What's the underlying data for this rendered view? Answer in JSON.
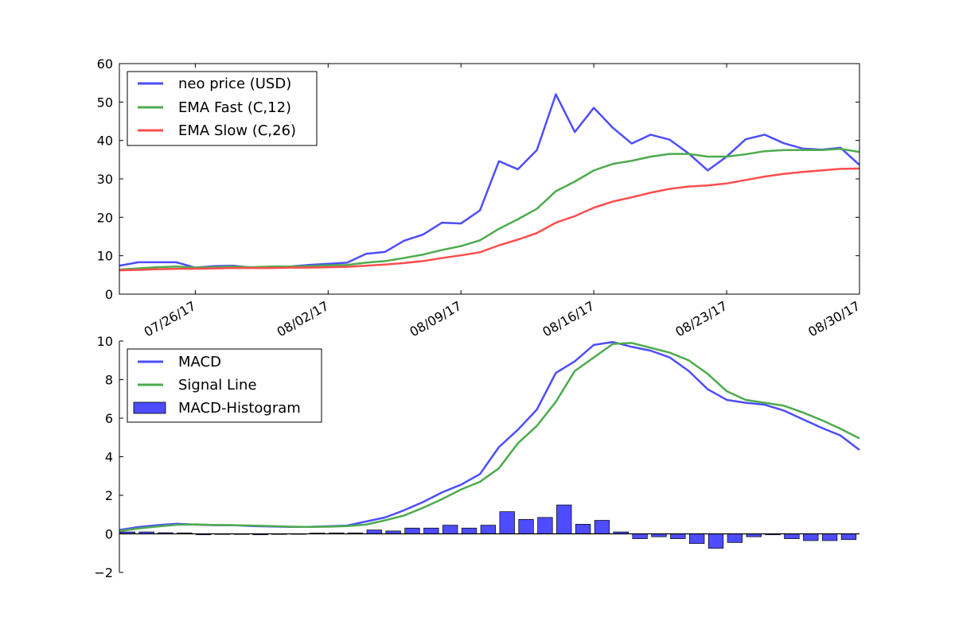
{
  "chart_data": [
    {
      "type": "line",
      "ylim": [
        0,
        60
      ],
      "yticks": [
        0,
        10,
        20,
        30,
        40,
        50,
        60
      ],
      "xlim": [
        "2017-07-22",
        "2017-08-30"
      ],
      "xticks": [
        "2017-07-26",
        "2017-08-02",
        "2017-08-09",
        "2017-08-16",
        "2017-08-23",
        "2017-08-30"
      ],
      "xtick_labels": [
        "07/26/17",
        "08/02/17",
        "08/09/17",
        "08/16/17",
        "08/23/17",
        "08/30/17"
      ],
      "legend_position": "upper-left",
      "colors": {
        "neo price (USD)": "#4d4dff",
        "EMA Fast (C,12)": "#4dab4d",
        "EMA Slow (C,26)": "#ff4d4d"
      },
      "x": [
        "2017-07-22",
        "2017-07-23",
        "2017-07-24",
        "2017-07-25",
        "2017-07-26",
        "2017-07-27",
        "2017-07-28",
        "2017-07-29",
        "2017-07-30",
        "2017-07-31",
        "2017-08-01",
        "2017-08-02",
        "2017-08-03",
        "2017-08-04",
        "2017-08-05",
        "2017-08-06",
        "2017-08-07",
        "2017-08-08",
        "2017-08-09",
        "2017-08-10",
        "2017-08-11",
        "2017-08-12",
        "2017-08-13",
        "2017-08-14",
        "2017-08-15",
        "2017-08-16",
        "2017-08-17",
        "2017-08-18",
        "2017-08-19",
        "2017-08-20",
        "2017-08-21",
        "2017-08-22",
        "2017-08-23",
        "2017-08-24",
        "2017-08-25",
        "2017-08-26",
        "2017-08-27",
        "2017-08-28",
        "2017-08-29",
        "2017-08-30"
      ],
      "series": [
        {
          "name": "neo price (USD)",
          "values": [
            7.4,
            8.3,
            8.3,
            8.3,
            6.9,
            7.3,
            7.4,
            6.9,
            7.1,
            7.2,
            7.6,
            7.9,
            8.2,
            10.5,
            11.0,
            13.9,
            15.5,
            18.6,
            18.4,
            21.8,
            34.6,
            32.5,
            37.5,
            52.0,
            42.2,
            48.5,
            43.3,
            39.2,
            41.5,
            40.2,
            36.6,
            32.2,
            35.8,
            40.3,
            41.5,
            39.3,
            37.9,
            37.6,
            38.1,
            33.6
          ]
        },
        {
          "name": "EMA Fast (C,12)",
          "values": [
            6.4,
            6.7,
            7.0,
            7.2,
            6.9,
            7.0,
            7.2,
            7.0,
            7.2,
            7.2,
            7.3,
            7.5,
            7.6,
            8.2,
            8.6,
            9.4,
            10.3,
            11.5,
            12.5,
            14.0,
            17.0,
            19.5,
            22.2,
            26.8,
            29.3,
            32.2,
            33.9,
            34.7,
            35.8,
            36.5,
            36.5,
            35.8,
            35.8,
            36.4,
            37.2,
            37.5,
            37.5,
            37.5,
            37.8,
            37.0
          ]
        },
        {
          "name": "EMA Slow (C,26)",
          "values": [
            6.2,
            6.3,
            6.5,
            6.6,
            6.6,
            6.7,
            6.8,
            6.8,
            6.8,
            6.9,
            6.9,
            7.0,
            7.1,
            7.4,
            7.7,
            8.1,
            8.6,
            9.4,
            10.1,
            10.9,
            12.7,
            14.2,
            15.9,
            18.6,
            20.3,
            22.5,
            24.1,
            25.2,
            26.4,
            27.4,
            28.0,
            28.3,
            28.8,
            29.7,
            30.6,
            31.3,
            31.8,
            32.2,
            32.6,
            32.7
          ]
        }
      ]
    },
    {
      "type": "line+bar",
      "ylim": [
        -2,
        10
      ],
      "yticks": [
        -2,
        0,
        2,
        4,
        6,
        8,
        10
      ],
      "ytick_labels": [
        "−2",
        "0",
        "2",
        "4",
        "6",
        "8",
        "10"
      ],
      "legend_position": "upper-left",
      "colors": {
        "MACD": "#4d4dff",
        "Signal Line": "#4dab4d",
        "MACD-Histogram": "#4d4dff"
      },
      "x": [
        "2017-07-22",
        "2017-07-23",
        "2017-07-24",
        "2017-07-25",
        "2017-07-26",
        "2017-07-27",
        "2017-07-28",
        "2017-07-29",
        "2017-07-30",
        "2017-07-31",
        "2017-08-01",
        "2017-08-02",
        "2017-08-03",
        "2017-08-04",
        "2017-08-05",
        "2017-08-06",
        "2017-08-07",
        "2017-08-08",
        "2017-08-09",
        "2017-08-10",
        "2017-08-11",
        "2017-08-12",
        "2017-08-13",
        "2017-08-14",
        "2017-08-15",
        "2017-08-16",
        "2017-08-17",
        "2017-08-18",
        "2017-08-19",
        "2017-08-20",
        "2017-08-21",
        "2017-08-22",
        "2017-08-23",
        "2017-08-24",
        "2017-08-25",
        "2017-08-26",
        "2017-08-27",
        "2017-08-28",
        "2017-08-29",
        "2017-08-30"
      ],
      "series": [
        {
          "name": "MACD",
          "kind": "line",
          "values": [
            0.2,
            0.35,
            0.45,
            0.52,
            0.48,
            0.45,
            0.45,
            0.4,
            0.38,
            0.36,
            0.36,
            0.39,
            0.43,
            0.64,
            0.85,
            1.22,
            1.65,
            2.15,
            2.55,
            3.1,
            4.5,
            5.4,
            6.45,
            8.35,
            8.95,
            9.8,
            9.95,
            9.7,
            9.5,
            9.15,
            8.45,
            7.5,
            6.95,
            6.8,
            6.7,
            6.4,
            5.95,
            5.5,
            5.1,
            4.35
          ]
        },
        {
          "name": "Signal Line",
          "kind": "line",
          "values": [
            0.15,
            0.28,
            0.38,
            0.47,
            0.49,
            0.46,
            0.45,
            0.43,
            0.4,
            0.37,
            0.36,
            0.37,
            0.4,
            0.48,
            0.7,
            0.95,
            1.35,
            1.8,
            2.3,
            2.7,
            3.4,
            4.7,
            5.6,
            6.85,
            8.45,
            9.15,
            9.85,
            9.9,
            9.65,
            9.4,
            9.0,
            8.3,
            7.4,
            6.95,
            6.8,
            6.65,
            6.3,
            5.9,
            5.45,
            4.95
          ]
        },
        {
          "name": "MACD-Histogram",
          "kind": "bar",
          "values": [
            0.1,
            0.1,
            0.06,
            0.05,
            -0.05,
            -0.03,
            -0.03,
            -0.05,
            -0.03,
            -0.01,
            0.04,
            0.05,
            0.05,
            0.2,
            0.15,
            0.3,
            0.3,
            0.45,
            0.3,
            0.45,
            1.15,
            0.75,
            0.85,
            1.5,
            0.5,
            0.7,
            0.1,
            -0.25,
            -0.15,
            -0.25,
            -0.5,
            -0.75,
            -0.45,
            -0.15,
            -0.05,
            -0.25,
            -0.35,
            -0.35,
            -0.3,
            -0.55
          ]
        }
      ]
    }
  ]
}
